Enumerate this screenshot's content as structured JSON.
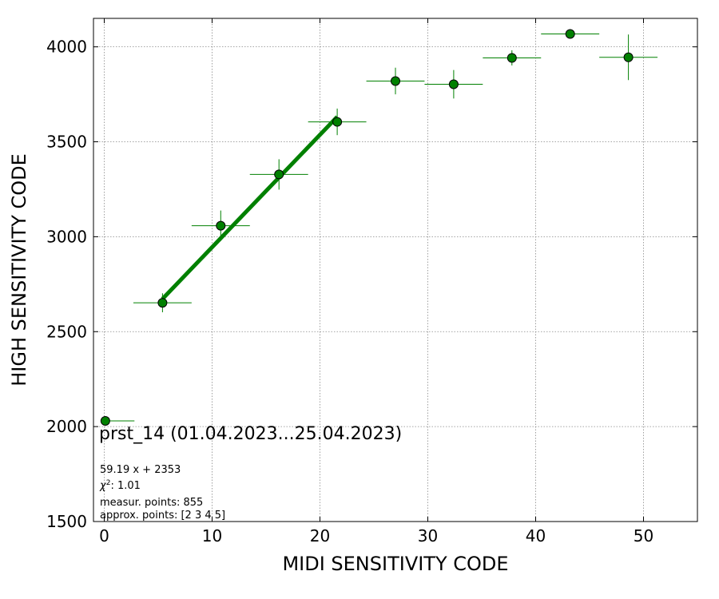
{
  "chart_data": {
    "type": "scatter",
    "xlabel": "MIDI SENSITIVITY CODE",
    "ylabel": "HIGH SENSITIVITY CODE",
    "xlim": [
      -1,
      55
    ],
    "ylim": [
      1500,
      4150
    ],
    "xticks": [
      0,
      10,
      20,
      30,
      40,
      50
    ],
    "yticks": [
      1500,
      2000,
      2500,
      3000,
      3500,
      4000
    ],
    "grid": true,
    "colors": {
      "marker": "#008000",
      "errorbar": "#008000",
      "fit": "#008000"
    },
    "points": [
      {
        "x": 0.1,
        "y": 2030,
        "xerr_lo": 0.1,
        "xerr_hi": 2.7,
        "yerr": 0
      },
      {
        "x": 5.4,
        "y": 2652,
        "xerr_lo": 2.7,
        "xerr_hi": 2.7,
        "yerr": 50
      },
      {
        "x": 10.8,
        "y": 3058,
        "xerr_lo": 2.7,
        "xerr_hi": 2.7,
        "yerr": 80
      },
      {
        "x": 16.2,
        "y": 3328,
        "xerr_lo": 2.7,
        "xerr_hi": 2.7,
        "yerr": 80
      },
      {
        "x": 21.6,
        "y": 3605,
        "xerr_lo": 2.7,
        "xerr_hi": 2.7,
        "yerr": 70
      },
      {
        "x": 27.0,
        "y": 3820,
        "xerr_lo": 2.7,
        "xerr_hi": 2.7,
        "yerr": 70
      },
      {
        "x": 32.4,
        "y": 3803,
        "xerr_lo": 2.7,
        "xerr_hi": 2.7,
        "yerr": 75
      },
      {
        "x": 37.8,
        "y": 3942,
        "xerr_lo": 2.7,
        "xerr_hi": 2.7,
        "yerr": 40
      },
      {
        "x": 43.2,
        "y": 4068,
        "xerr_lo": 2.7,
        "xerr_hi": 2.7,
        "yerr": 10
      },
      {
        "x": 48.6,
        "y": 3945,
        "xerr_lo": 2.7,
        "xerr_hi": 2.7,
        "yerr": 120
      }
    ],
    "fit": {
      "slope": 59.19,
      "intercept": 2353,
      "x_start": 5.4,
      "x_end": 21.6
    },
    "annotations": {
      "title_note": "prst_14 (01.04.2023...25.04.2023)",
      "fit_label": "59.19 x + 2353",
      "chi2_label": "χ",
      "chi2_sup": "2",
      "chi2_value": ": 1.01",
      "measur_points": "measur. points: 855",
      "approx_points": "approx. points: [2 3 4 5]"
    }
  }
}
